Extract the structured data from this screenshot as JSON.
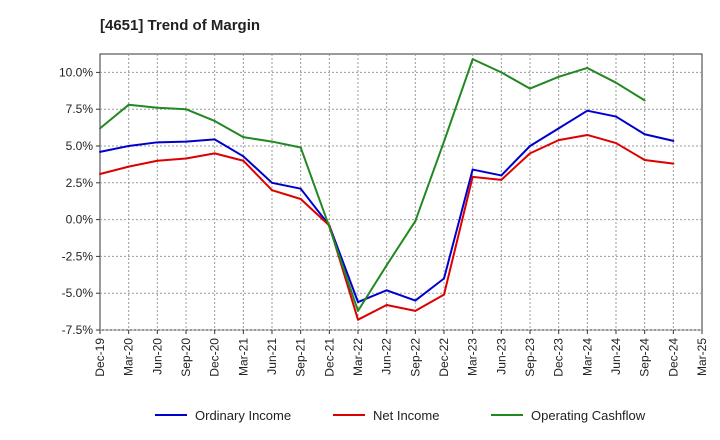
{
  "chart_data": {
    "type": "line",
    "title": "[4651]  Trend of Margin",
    "xlabel": "",
    "ylabel": "",
    "ylim": [
      -7.5,
      11.25
    ],
    "yticks": [
      -7.5,
      -5.0,
      -2.5,
      0.0,
      2.5,
      5.0,
      7.5,
      10.0
    ],
    "ytick_labels": [
      "-7.5%",
      "-5.0%",
      "-2.5%",
      "0.0%",
      "2.5%",
      "5.0%",
      "7.5%",
      "10.0%"
    ],
    "categories": [
      "Dec-19",
      "Mar-20",
      "Jun-20",
      "Sep-20",
      "Dec-20",
      "Mar-21",
      "Jun-21",
      "Sep-21",
      "Dec-21",
      "Mar-22",
      "Jun-22",
      "Sep-22",
      "Dec-22",
      "Mar-23",
      "Jun-23",
      "Sep-23",
      "Dec-23",
      "Mar-24",
      "Jun-24",
      "Sep-24",
      "Dec-24",
      "Mar-25"
    ],
    "grid": true,
    "legend_position": "bottom",
    "series": [
      {
        "name": "Ordinary Income",
        "color": "#0000cc",
        "values": [
          4.6,
          5.0,
          5.25,
          5.3,
          5.45,
          4.3,
          2.5,
          2.1,
          -0.4,
          -5.6,
          -4.8,
          -5.5,
          -4.0,
          3.4,
          3.0,
          5.0,
          6.2,
          7.4,
          7.0,
          5.8,
          5.35,
          null
        ]
      },
      {
        "name": "Net Income",
        "color": "#dd0000",
        "values": [
          3.1,
          3.6,
          4.0,
          4.15,
          4.5,
          4.0,
          2.0,
          1.4,
          -0.4,
          -6.8,
          -5.8,
          -6.2,
          -5.1,
          2.9,
          2.7,
          4.5,
          5.4,
          5.75,
          5.2,
          4.05,
          3.8,
          null
        ]
      },
      {
        "name": "Operating Cashflow",
        "color": "#228822",
        "values": [
          6.2,
          7.8,
          7.6,
          7.5,
          6.7,
          5.6,
          5.3,
          4.9,
          -0.5,
          -6.2,
          -3.1,
          -0.1,
          5.3,
          10.9,
          10.0,
          8.9,
          9.7,
          10.3,
          9.3,
          8.1,
          null,
          null
        ]
      }
    ]
  }
}
